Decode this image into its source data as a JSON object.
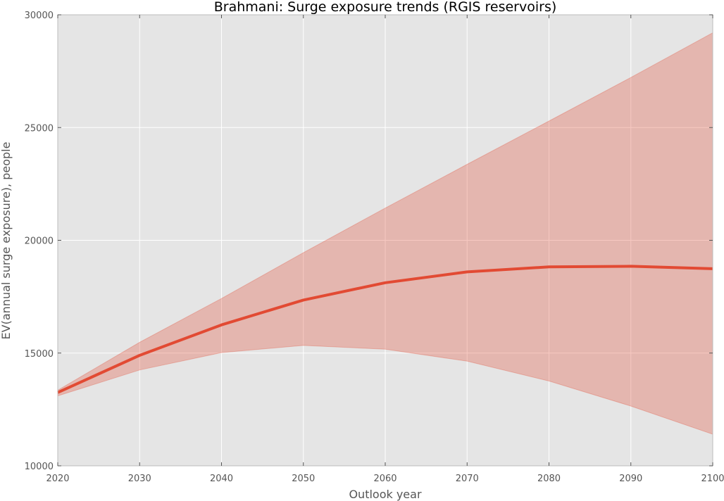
{
  "chart_data": {
    "type": "area",
    "title": "Brahmani: Surge exposure trends (RGIS reservoirs)",
    "xlabel": "Outlook year",
    "ylabel": "EV(annual surge exposure), people",
    "xlim": [
      2020,
      2100
    ],
    "ylim": [
      10000,
      30000
    ],
    "xticks": [
      2020,
      2030,
      2040,
      2050,
      2060,
      2070,
      2080,
      2090,
      2100
    ],
    "yticks": [
      10000,
      15000,
      20000,
      25000,
      30000
    ],
    "grid": true,
    "x": [
      2020,
      2030,
      2040,
      2050,
      2060,
      2070,
      2080,
      2090,
      2100
    ],
    "series": [
      {
        "values": [
          13250,
          14900,
          16250,
          17350,
          18120,
          18600,
          18820,
          18850,
          18740
        ],
        "band_low": [
          13100,
          14250,
          15020,
          15340,
          15170,
          14640,
          13760,
          12650,
          11400
        ],
        "band_high": [
          13350,
          15480,
          17420,
          19450,
          21430,
          23370,
          25290,
          27220,
          29200
        ]
      }
    ],
    "colors": {
      "plot_bg": "#e5e5e5",
      "grid": "#ffffff",
      "line": "#e24a33",
      "band": "#e24a33"
    }
  }
}
